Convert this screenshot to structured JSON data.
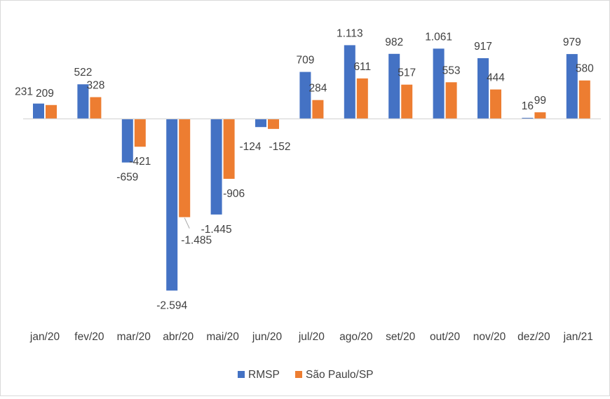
{
  "chart_data": {
    "type": "bar",
    "title": "",
    "xlabel": "",
    "ylabel": "",
    "categories": [
      "jan/20",
      "fev/20",
      "mar/20",
      "abr/20",
      "mai/20",
      "jun/20",
      "jul/20",
      "ago/20",
      "set/20",
      "out/20",
      "nov/20",
      "dez/20",
      "jan/21"
    ],
    "series": [
      {
        "name": "RMSP",
        "color": "#4472C4",
        "values": [
          231,
          522,
          -659,
          -2594,
          -1445,
          -124,
          709,
          1113,
          982,
          1061,
          917,
          16,
          979
        ],
        "labels": [
          "231",
          "522",
          "-659",
          "-2.594",
          "-1.445",
          "-124",
          "709",
          "1.113",
          "982",
          "1.061",
          "917",
          "16",
          "979"
        ]
      },
      {
        "name": "São Paulo/SP",
        "color": "#ED7D31",
        "values": [
          209,
          328,
          -421,
          -1485,
          -906,
          -152,
          284,
          611,
          517,
          553,
          444,
          99,
          580
        ],
        "labels": [
          "209",
          "328",
          "-421",
          "-1.485",
          "-906",
          "-152",
          "284",
          "611",
          "517",
          "553",
          "444",
          "99",
          "580"
        ]
      }
    ],
    "ylim": [
      -2800,
      1300
    ],
    "grid": false,
    "legend_position": "bottom"
  }
}
